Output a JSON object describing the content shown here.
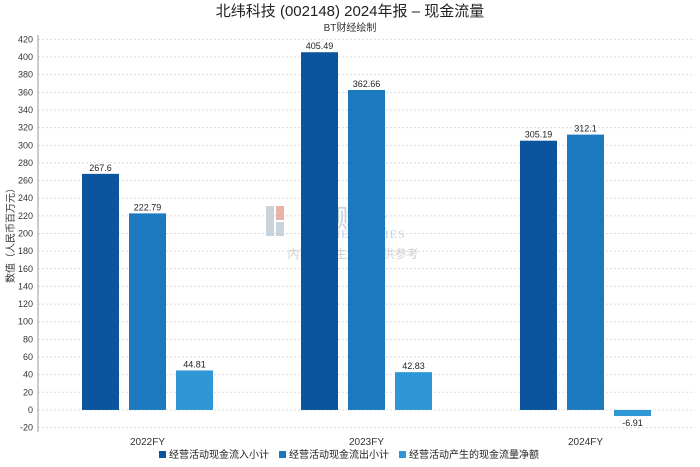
{
  "chart_data": {
    "type": "bar",
    "title": "北纬科技 (002148) 2024年报  –  现金流量",
    "subtitle": "BT财经绘制",
    "ylabel": "数值（人民币百万元）",
    "xlabel": "",
    "categories": [
      "2022FY",
      "2023FY",
      "2024FY"
    ],
    "series": [
      {
        "name": "经营活动现金流入小计",
        "color": "#0b559f",
        "values": [
          267.6,
          405.49,
          305.19
        ],
        "labels": [
          "267.6",
          "405.49",
          "305.19"
        ]
      },
      {
        "name": "经营活动现金流出小计",
        "color": "#1c78bf",
        "values": [
          222.79,
          362.66,
          312.1
        ],
        "labels": [
          "222.79",
          "362.66",
          "312.1"
        ]
      },
      {
        "name": "经营活动产生的现金流量净额",
        "color": "#2f97d6",
        "values": [
          44.81,
          42.83,
          -6.91
        ],
        "labels": [
          "44.81",
          "42.83",
          "-6.91"
        ]
      }
    ],
    "ylim": [
      -25,
      425
    ],
    "yticks": [
      -20,
      0,
      20,
      40,
      60,
      80,
      100,
      120,
      140,
      160,
      180,
      200,
      220,
      240,
      260,
      280,
      300,
      320,
      340,
      360,
      380,
      400,
      420
    ],
    "grid": true,
    "legend": "bottom-center"
  },
  "watermark": {
    "logo": "BT财经",
    "brand": "BUSINESSTIMES",
    "notice": "内容由AI生成，仅供参考"
  }
}
